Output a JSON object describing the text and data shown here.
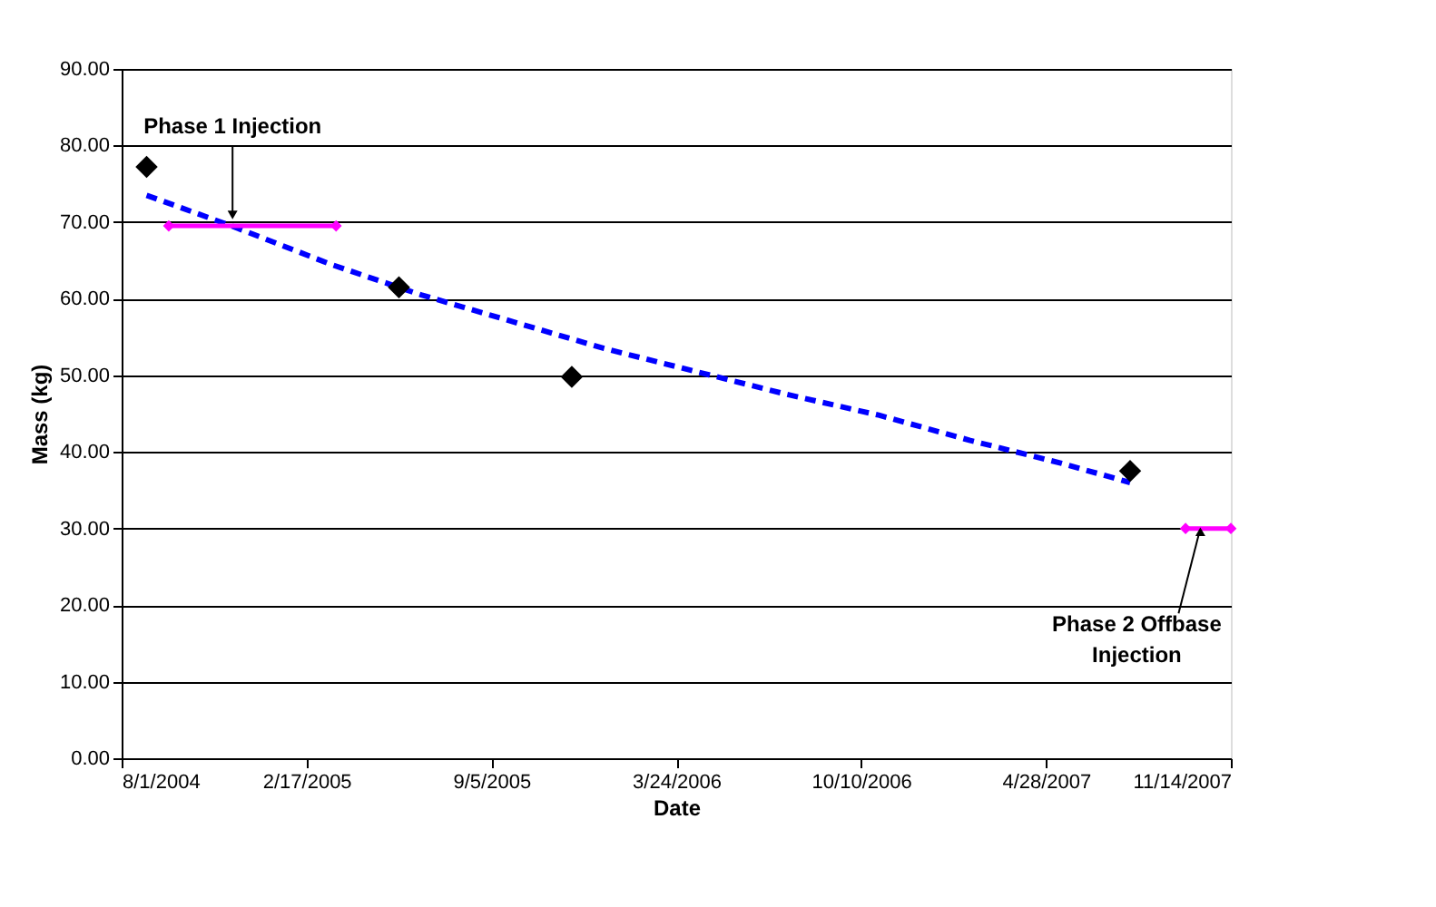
{
  "chart_data": {
    "type": "scatter",
    "xlabel": "Date",
    "ylabel": "Mass (kg)",
    "xlim": [
      "2004-08-01",
      "2007-11-14"
    ],
    "xticks": [
      {
        "value": "2004-08-01",
        "label": "8/1/2004"
      },
      {
        "value": "2005-02-17",
        "label": "2/17/2005"
      },
      {
        "value": "2005-09-05",
        "label": "9/5/2005"
      },
      {
        "value": "2006-03-24",
        "label": "3/24/2006"
      },
      {
        "value": "2006-10-10",
        "label": "10/10/2006"
      },
      {
        "value": "2007-04-28",
        "label": "4/28/2007"
      },
      {
        "value": "2007-11-14",
        "label": "11/14/2007"
      }
    ],
    "ylim": [
      0,
      90
    ],
    "yticks": [
      {
        "value": 0,
        "label": "0.00"
      },
      {
        "value": 10,
        "label": "10.00"
      },
      {
        "value": 20,
        "label": "20.00"
      },
      {
        "value": 30,
        "label": "30.00"
      },
      {
        "value": 40,
        "label": "40.00"
      },
      {
        "value": 50,
        "label": "50.00"
      },
      {
        "value": 60,
        "label": "60.00"
      },
      {
        "value": 70,
        "label": "70.00"
      },
      {
        "value": 80,
        "label": "80.00"
      },
      {
        "value": 90,
        "label": "90.00"
      }
    ],
    "grid": "y",
    "series": [
      {
        "type": "line",
        "color": "#0000ff",
        "line_style": "dashed",
        "marker": "none",
        "x": [
          "2004-08-28",
          "2004-11-28",
          "2005-03-15",
          "2005-06-21",
          "2005-09-28",
          "2006-01-05",
          "2006-04-14",
          "2006-07-22",
          "2006-10-29",
          "2007-02-05",
          "2007-05-15",
          "2007-07-28"
        ],
        "values": [
          73.5,
          69.5,
          64.5,
          60.5,
          57,
          53.5,
          50.5,
          47.5,
          44.8,
          41.5,
          38.5,
          36
        ]
      },
      {
        "color": "#000000",
        "marker": "diamond",
        "x": [
          "2004-08-28",
          "2005-05-28",
          "2005-12-01",
          "2007-07-28"
        ],
        "values": [
          77.2,
          61.5,
          49.8,
          37.5
        ]
      },
      {
        "type": "line",
        "color": "#ff00ff",
        "line_style": "solid",
        "marker": "diamond",
        "x": [
          "2004-09-21",
          "2005-03-21"
        ],
        "values": [
          69.5,
          69.5
        ]
      },
      {
        "type": "line",
        "color": "#ff00ff",
        "line_style": "solid",
        "marker": "diamond",
        "x": [
          "2007-09-26",
          "2007-11-14"
        ],
        "values": [
          30,
          30
        ]
      }
    ],
    "annotations": [
      {
        "text": "Phase 1 Injection",
        "x": "2004-11-29",
        "y": 69.5
      },
      {
        "text": "Phase 2 Offbase Injection",
        "x": "2007-10-12",
        "y": 31
      }
    ]
  }
}
